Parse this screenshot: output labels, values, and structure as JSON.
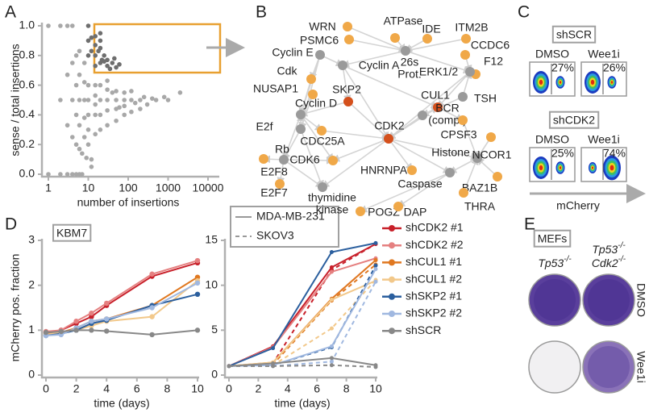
{
  "panel_labels": [
    "A",
    "B",
    "C",
    "D",
    "E"
  ],
  "chart_data": [
    {
      "type": "scatter",
      "xlabel": "number of insertions",
      "ylabel": "sense / total insertions",
      "xscale": "log",
      "xlim": [
        1,
        10000
      ],
      "ylim": [
        0,
        1
      ],
      "xticks": [
        1,
        10,
        100,
        1000,
        10000
      ],
      "yticks": [
        {
          "value": 0,
          "label": "0.0"
        },
        {
          "value": 0.2,
          "label": "0.2"
        },
        {
          "value": 0.4,
          "label": "0.4"
        },
        {
          "value": 0.6,
          "label": "0.6"
        },
        {
          "value": 0.8,
          "label": "0.8"
        },
        {
          "value": 1,
          "label": "1.0"
        }
      ],
      "series": [
        {
          "color": "#a8a8a8",
          "x": [
            1,
            1,
            2,
            2,
            2,
            3,
            3,
            3,
            3,
            4,
            4,
            4,
            4,
            4,
            5,
            5,
            5,
            5,
            6,
            6,
            6,
            6,
            6,
            8,
            8,
            8,
            8,
            8,
            10,
            10,
            10,
            10,
            10,
            15,
            15,
            15,
            15,
            15,
            20,
            20,
            20,
            20,
            30,
            30,
            30,
            30,
            30,
            50,
            50,
            50,
            50,
            80,
            80,
            80,
            80,
            120,
            120,
            120,
            200,
            200,
            300,
            500,
            800,
            1000,
            2000,
            12,
            12,
            7,
            7,
            9,
            5,
            6,
            40,
            60,
            150,
            250,
            400
          ],
          "y": [
            0,
            1,
            0,
            0.5,
            1,
            0,
            0.33,
            0.67,
            1,
            0,
            0.25,
            0.5,
            0.75,
            1,
            0.2,
            0.4,
            0.6,
            0.8,
            0.17,
            0.33,
            0.5,
            0.67,
            0.83,
            0.25,
            0.38,
            0.5,
            0.62,
            0.75,
            0.2,
            0.3,
            0.4,
            0.5,
            0.6,
            0.27,
            0.4,
            0.47,
            0.53,
            0.6,
            0.3,
            0.4,
            0.5,
            0.6,
            0.33,
            0.43,
            0.5,
            0.57,
            0.63,
            0.36,
            0.44,
            0.5,
            0.56,
            0.4,
            0.46,
            0.5,
            0.55,
            0.42,
            0.5,
            0.56,
            0.44,
            0.5,
            0.47,
            0.5,
            0.52,
            0.5,
            0.55,
            0.1,
            0.05,
            0.14,
            0,
            0.11,
            0,
            0,
            0.55,
            0.45,
            0.48,
            0.52,
            0.51
          ]
        },
        {
          "color": "#6e6e6e",
          "x": [
            10,
            10,
            12,
            12,
            15,
            15,
            15,
            20,
            20,
            20,
            25,
            25,
            30,
            30,
            40,
            50,
            60,
            15,
            20,
            10,
            35,
            45,
            18,
            22
          ],
          "y": [
            0.8,
            0.9,
            0.83,
            0.92,
            0.8,
            0.73,
            0.87,
            0.75,
            0.85,
            0.9,
            0.76,
            0.8,
            0.77,
            0.73,
            0.75,
            0.72,
            0.74,
            0.93,
            0.95,
            1,
            0.71,
            0.78,
            0.83,
            0.77
          ]
        }
      ]
    },
    {
      "type": "line",
      "title": "KBM7",
      "xlabel": "time (days)",
      "ylabel": "mCherry pos. fraction",
      "x": [
        0,
        1,
        2,
        3,
        4,
        7,
        10
      ],
      "xlim": [
        0,
        10
      ],
      "ylim": [
        0,
        3
      ],
      "xticks": [
        0,
        2,
        4,
        6,
        8,
        10
      ],
      "yticks": [
        0,
        1,
        2,
        3
      ],
      "series": [
        {
          "color": "#c8202a",
          "values": [
            0.95,
            1.0,
            1.15,
            1.3,
            1.55,
            2.2,
            2.5
          ]
        },
        {
          "color": "#e58080",
          "values": [
            0.97,
            1.0,
            1.2,
            1.38,
            1.6,
            2.25,
            2.55
          ]
        },
        {
          "color": "#e07820",
          "values": [
            0.92,
            0.95,
            1.05,
            1.2,
            1.25,
            1.55,
            2.18
          ]
        },
        {
          "color": "#f2c88a",
          "values": [
            0.9,
            0.95,
            1.0,
            1.1,
            1.2,
            1.3,
            2.1
          ]
        },
        {
          "color": "#2b5f9e",
          "values": [
            0.88,
            0.92,
            1.0,
            1.15,
            1.22,
            1.55,
            1.8
          ]
        },
        {
          "color": "#a0b8e0",
          "values": [
            0.88,
            0.9,
            1.05,
            1.2,
            1.25,
            1.5,
            2.05
          ]
        },
        {
          "color": "#888888",
          "values": [
            0.95,
            0.97,
            1.0,
            1.0,
            0.98,
            0.9,
            1.0
          ]
        }
      ]
    },
    {
      "type": "line",
      "xlabel": "time (days)",
      "x": [
        0,
        3,
        7,
        10
      ],
      "xlim": [
        0,
        10
      ],
      "ylim": [
        0,
        15
      ],
      "xticks": [
        0,
        2,
        4,
        6,
        8,
        10
      ],
      "yticks": [
        0,
        5,
        10,
        15
      ],
      "line_styles": [
        {
          "name": "MDA-MB-231",
          "dash": "solid"
        },
        {
          "name": "SKOV3",
          "dash": "dashed"
        }
      ],
      "series": [
        {
          "name": "shCDK2 #1",
          "color": "#c8202a",
          "values": [
            [
              1,
              3.2,
              12.0,
              14.6
            ],
            [
              1,
              1.3,
              11.7,
              14.6
            ]
          ]
        },
        {
          "name": "shCDK2 #2",
          "color": "#e58080",
          "values": [
            [
              1,
              3.1,
              11.5,
              13.0
            ],
            [
              1,
              1.2,
              8.5,
              12.8
            ]
          ]
        },
        {
          "name": "shCUL1 #1",
          "color": "#e07820",
          "values": [
            [
              1,
              1.4,
              8.5,
              12.8
            ],
            [
              1,
              1.2,
              8.3,
              12.3
            ]
          ]
        },
        {
          "name": "shCUL1 #2",
          "color": "#f2c88a",
          "values": [
            [
              1,
              1.4,
              8.4,
              10.5
            ],
            [
              1,
              1.1,
              5.2,
              10.6
            ]
          ]
        },
        {
          "name": "shSKP2 #1",
          "color": "#2b5f9e",
          "values": [
            [
              1,
              3.0,
              13.7,
              14.7
            ],
            [
              1,
              1.1,
              3.1,
              12.2
            ]
          ]
        },
        {
          "name": "shSKP2 #2",
          "color": "#a0b8e0",
          "values": [
            [
              1,
              1.1,
              3.2,
              11.8
            ],
            [
              1,
              1.0,
              1.5,
              10.4
            ]
          ]
        },
        {
          "name": "shSCR",
          "color": "#888888",
          "values": [
            [
              1,
              1.3,
              1.9,
              1.1
            ],
            [
              1,
              1.0,
              1.1,
              0.9
            ]
          ]
        }
      ]
    }
  ],
  "network": {
    "nodes": [
      {
        "label": [
          "WRN"
        ],
        "color": "#f0a848"
      },
      {
        "label": [
          "ATPase"
        ],
        "color": "#f0a848"
      },
      {
        "label": [
          "IDE"
        ],
        "color": "#f0a848"
      },
      {
        "label": [
          "ITM2B"
        ],
        "color": "#f0a848"
      },
      {
        "label": [
          "PSMC6"
        ],
        "color": "#f0a848"
      },
      {
        "label": [
          "CCDC6"
        ],
        "color": "#f0a848"
      },
      {
        "label": [
          "26s",
          "Prot."
        ],
        "color": "#9a9a9a"
      },
      {
        "label": [
          "F12"
        ],
        "color": "#f0a848"
      },
      {
        "label": [
          "Cyclin E"
        ],
        "color": "#9a9a9a"
      },
      {
        "label": [
          "Cyclin A"
        ],
        "color": "#9a9a9a"
      },
      {
        "label": [
          "ERK1/2"
        ],
        "color": "#9a9a9a"
      },
      {
        "label": [
          "Cdk"
        ],
        "color": "#f0a848"
      },
      {
        "label": [
          "NUSAP1"
        ],
        "color": "#f0a848"
      },
      {
        "label": [
          "SKP2"
        ],
        "color": "#d4501c"
      },
      {
        "label": [
          "CUL1"
        ],
        "color": "#d4501c"
      },
      {
        "label": [
          "TSH"
        ],
        "color": "#9a9a9a"
      },
      {
        "label": [
          "Cyclin D"
        ],
        "color": "#9a9a9a"
      },
      {
        "label": [
          "BCR",
          "(comp.)"
        ],
        "color": "#9a9a9a"
      },
      {
        "label": [
          "E2f"
        ],
        "color": "#9a9a9a"
      },
      {
        "label": [
          "CDK2"
        ],
        "color": "#d4501c"
      },
      {
        "label": [
          "CPSF3"
        ],
        "color": "#f0a848"
      },
      {
        "label": [
          "CDC25A"
        ],
        "color": "#f0a848"
      },
      {
        "label": [
          "Rb"
        ],
        "color": "#9a9a9a"
      },
      {
        "label": [
          "Histone"
        ],
        "color": "#9a9a9a"
      },
      {
        "label": [
          "NCOR1"
        ],
        "color": "#f0a848"
      },
      {
        "label": [
          "CDK6"
        ],
        "color": "#f0a848"
      },
      {
        "label": [
          "E2F8"
        ],
        "color": "#f0a848"
      },
      {
        "label": [
          "HNRNPA"
        ],
        "color": "#f0a848"
      },
      {
        "label": [
          "Caspase"
        ],
        "color": "#9a9a9a"
      },
      {
        "label": [
          "BAZ1B"
        ],
        "color": "#f0a848"
      },
      {
        "label": [
          "E2F7"
        ],
        "color": "#f0a848"
      },
      {
        "label": [
          "thymidine",
          "kinase"
        ],
        "color": "#9a9a9a"
      },
      {
        "label": [
          "THRA"
        ],
        "color": "#f0a848"
      },
      {
        "label": [
          "POGZ"
        ],
        "color": "#f0a848"
      },
      {
        "label": [
          "DAP"
        ],
        "color": "#f0a848"
      }
    ]
  },
  "flow": {
    "groups": [
      {
        "title": "shSCR",
        "conditions": [
          {
            "name": "DMSO",
            "percent": "27%"
          },
          {
            "name": "Wee1i",
            "percent": "26%"
          }
        ]
      },
      {
        "title": "shCDK2",
        "conditions": [
          {
            "name": "DMSO",
            "percent": "25%"
          },
          {
            "name": "Wee1i",
            "percent": "74%"
          }
        ]
      }
    ],
    "axis_label": "mCherry"
  },
  "plates": {
    "title": "MEFs",
    "columns": [
      [
        {
          "gene": "Tp53",
          "sup": "-/-"
        }
      ],
      [
        {
          "gene": "Tp53",
          "sup": "-/-"
        },
        {
          "gene": "Cdk2",
          "sup": "-/-"
        }
      ]
    ],
    "rows": [
      "DMSO",
      "Wee1i"
    ]
  }
}
